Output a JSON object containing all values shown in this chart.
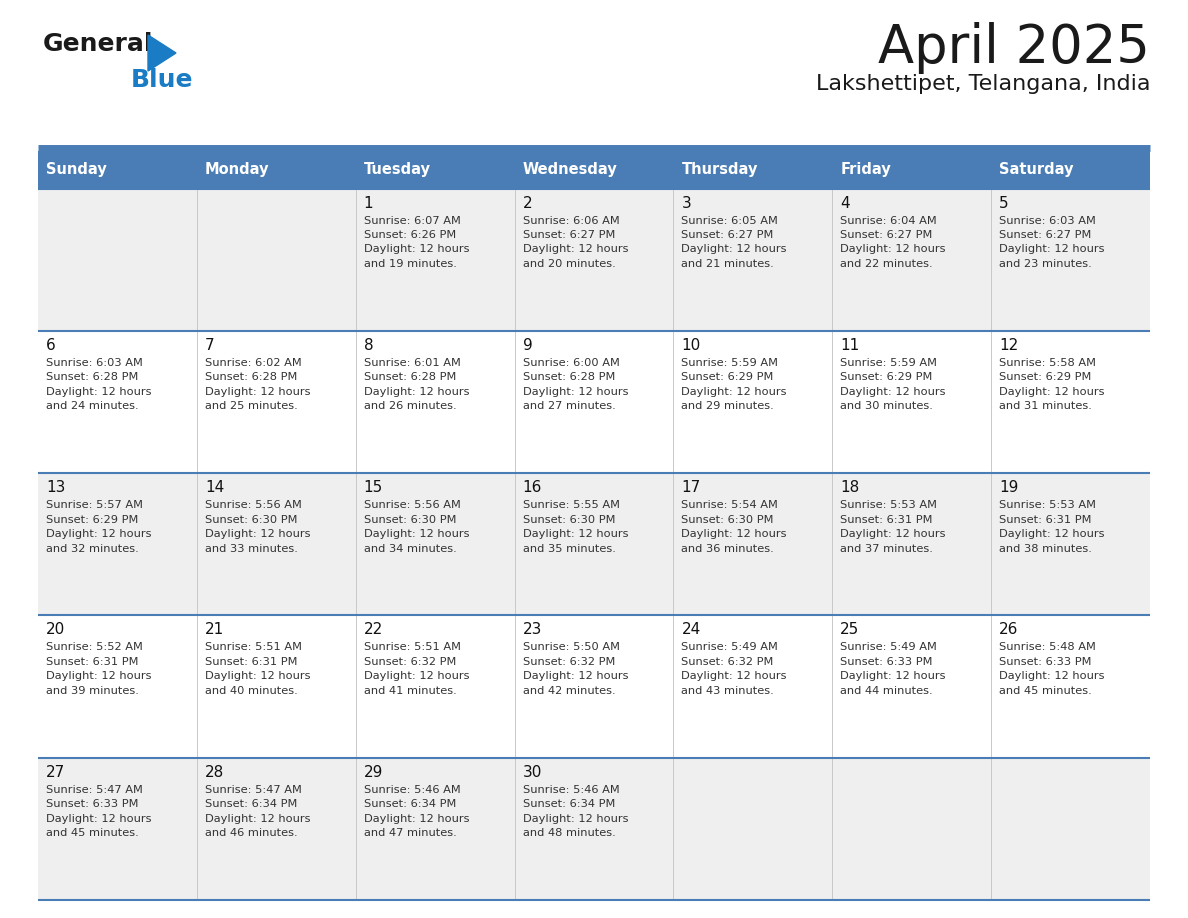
{
  "title": "April 2025",
  "subtitle": "Lakshettipet, Telangana, India",
  "header_bg": "#4a7db5",
  "header_text": "#ffffff",
  "row_bg_odd": "#efefef",
  "row_bg_even": "#ffffff",
  "separator_color": "#4a7db5",
  "text_color": "#333333",
  "day_number_color": "#111111",
  "days_of_week": [
    "Sunday",
    "Monday",
    "Tuesday",
    "Wednesday",
    "Thursday",
    "Friday",
    "Saturday"
  ],
  "weeks": [
    [
      {
        "day": null,
        "sunrise": null,
        "sunset": null,
        "daylight_hours": null,
        "daylight_minutes": null
      },
      {
        "day": null,
        "sunrise": null,
        "sunset": null,
        "daylight_hours": null,
        "daylight_minutes": null
      },
      {
        "day": 1,
        "sunrise": "6:07 AM",
        "sunset": "6:26 PM",
        "daylight_hours": 12,
        "daylight_minutes": 19
      },
      {
        "day": 2,
        "sunrise": "6:06 AM",
        "sunset": "6:27 PM",
        "daylight_hours": 12,
        "daylight_minutes": 20
      },
      {
        "day": 3,
        "sunrise": "6:05 AM",
        "sunset": "6:27 PM",
        "daylight_hours": 12,
        "daylight_minutes": 21
      },
      {
        "day": 4,
        "sunrise": "6:04 AM",
        "sunset": "6:27 PM",
        "daylight_hours": 12,
        "daylight_minutes": 22
      },
      {
        "day": 5,
        "sunrise": "6:03 AM",
        "sunset": "6:27 PM",
        "daylight_hours": 12,
        "daylight_minutes": 23
      }
    ],
    [
      {
        "day": 6,
        "sunrise": "6:03 AM",
        "sunset": "6:28 PM",
        "daylight_hours": 12,
        "daylight_minutes": 24
      },
      {
        "day": 7,
        "sunrise": "6:02 AM",
        "sunset": "6:28 PM",
        "daylight_hours": 12,
        "daylight_minutes": 25
      },
      {
        "day": 8,
        "sunrise": "6:01 AM",
        "sunset": "6:28 PM",
        "daylight_hours": 12,
        "daylight_minutes": 26
      },
      {
        "day": 9,
        "sunrise": "6:00 AM",
        "sunset": "6:28 PM",
        "daylight_hours": 12,
        "daylight_minutes": 27
      },
      {
        "day": 10,
        "sunrise": "5:59 AM",
        "sunset": "6:29 PM",
        "daylight_hours": 12,
        "daylight_minutes": 29
      },
      {
        "day": 11,
        "sunrise": "5:59 AM",
        "sunset": "6:29 PM",
        "daylight_hours": 12,
        "daylight_minutes": 30
      },
      {
        "day": 12,
        "sunrise": "5:58 AM",
        "sunset": "6:29 PM",
        "daylight_hours": 12,
        "daylight_minutes": 31
      }
    ],
    [
      {
        "day": 13,
        "sunrise": "5:57 AM",
        "sunset": "6:29 PM",
        "daylight_hours": 12,
        "daylight_minutes": 32
      },
      {
        "day": 14,
        "sunrise": "5:56 AM",
        "sunset": "6:30 PM",
        "daylight_hours": 12,
        "daylight_minutes": 33
      },
      {
        "day": 15,
        "sunrise": "5:56 AM",
        "sunset": "6:30 PM",
        "daylight_hours": 12,
        "daylight_minutes": 34
      },
      {
        "day": 16,
        "sunrise": "5:55 AM",
        "sunset": "6:30 PM",
        "daylight_hours": 12,
        "daylight_minutes": 35
      },
      {
        "day": 17,
        "sunrise": "5:54 AM",
        "sunset": "6:30 PM",
        "daylight_hours": 12,
        "daylight_minutes": 36
      },
      {
        "day": 18,
        "sunrise": "5:53 AM",
        "sunset": "6:31 PM",
        "daylight_hours": 12,
        "daylight_minutes": 37
      },
      {
        "day": 19,
        "sunrise": "5:53 AM",
        "sunset": "6:31 PM",
        "daylight_hours": 12,
        "daylight_minutes": 38
      }
    ],
    [
      {
        "day": 20,
        "sunrise": "5:52 AM",
        "sunset": "6:31 PM",
        "daylight_hours": 12,
        "daylight_minutes": 39
      },
      {
        "day": 21,
        "sunrise": "5:51 AM",
        "sunset": "6:31 PM",
        "daylight_hours": 12,
        "daylight_minutes": 40
      },
      {
        "day": 22,
        "sunrise": "5:51 AM",
        "sunset": "6:32 PM",
        "daylight_hours": 12,
        "daylight_minutes": 41
      },
      {
        "day": 23,
        "sunrise": "5:50 AM",
        "sunset": "6:32 PM",
        "daylight_hours": 12,
        "daylight_minutes": 42
      },
      {
        "day": 24,
        "sunrise": "5:49 AM",
        "sunset": "6:32 PM",
        "daylight_hours": 12,
        "daylight_minutes": 43
      },
      {
        "day": 25,
        "sunrise": "5:49 AM",
        "sunset": "6:33 PM",
        "daylight_hours": 12,
        "daylight_minutes": 44
      },
      {
        "day": 26,
        "sunrise": "5:48 AM",
        "sunset": "6:33 PM",
        "daylight_hours": 12,
        "daylight_minutes": 45
      }
    ],
    [
      {
        "day": 27,
        "sunrise": "5:47 AM",
        "sunset": "6:33 PM",
        "daylight_hours": 12,
        "daylight_minutes": 45
      },
      {
        "day": 28,
        "sunrise": "5:47 AM",
        "sunset": "6:34 PM",
        "daylight_hours": 12,
        "daylight_minutes": 46
      },
      {
        "day": 29,
        "sunrise": "5:46 AM",
        "sunset": "6:34 PM",
        "daylight_hours": 12,
        "daylight_minutes": 47
      },
      {
        "day": 30,
        "sunrise": "5:46 AM",
        "sunset": "6:34 PM",
        "daylight_hours": 12,
        "daylight_minutes": 48
      },
      {
        "day": null,
        "sunrise": null,
        "sunset": null,
        "daylight_hours": null,
        "daylight_minutes": null
      },
      {
        "day": null,
        "sunrise": null,
        "sunset": null,
        "daylight_hours": null,
        "daylight_minutes": null
      },
      {
        "day": null,
        "sunrise": null,
        "sunset": null,
        "daylight_hours": null,
        "daylight_minutes": null
      }
    ]
  ],
  "logo_general_color": "#1a1a1a",
  "logo_blue_color": "#1a7cc4",
  "logo_triangle_color": "#1a7cc4",
  "fig_width": 11.88,
  "fig_height": 9.18,
  "dpi": 100
}
